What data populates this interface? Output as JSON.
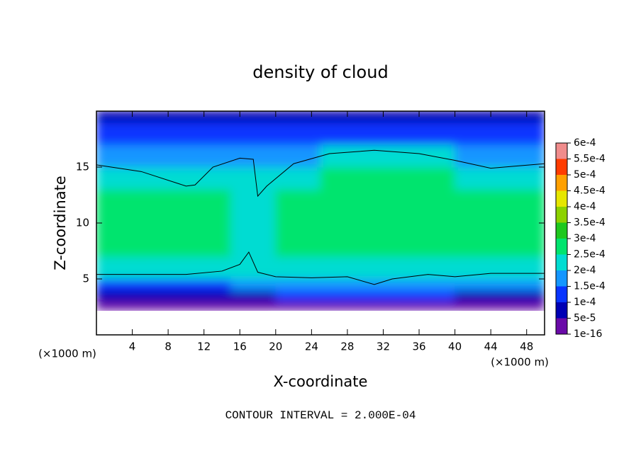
{
  "chart_data": {
    "type": "contour",
    "title": "density of cloud",
    "x_label": "X-coordinate",
    "y_label": "Z-coordinate",
    "x_unit": "(×1000 m)",
    "y_unit": "(×1000 m)",
    "footnote": "CONTOUR INTERVAL = 2.000E-04",
    "xlim": [
      0,
      50
    ],
    "ylim": [
      0,
      20
    ],
    "xticks": [
      4,
      8,
      12,
      16,
      20,
      24,
      28,
      32,
      36,
      40,
      44,
      48
    ],
    "yticks": [
      5,
      10,
      15
    ],
    "colorbar": {
      "ticks": [
        {
          "value": 1e-16,
          "label": "1e-16"
        },
        {
          "value": 5e-05,
          "label": "5e-5"
        },
        {
          "value": 0.0001,
          "label": "1e-4"
        },
        {
          "value": 0.00015,
          "label": "1.5e-4"
        },
        {
          "value": 0.0002,
          "label": "2e-4"
        },
        {
          "value": 0.00025,
          "label": "2.5e-4"
        },
        {
          "value": 0.0003,
          "label": "3e-4"
        },
        {
          "value": 0.00035,
          "label": "3.5e-4"
        },
        {
          "value": 0.0004,
          "label": "4e-4"
        },
        {
          "value": 0.00045,
          "label": "4.5e-4"
        },
        {
          "value": 0.0005,
          "label": "5e-4"
        },
        {
          "value": 0.00055,
          "label": "5.5e-4"
        },
        {
          "value": 0.0006,
          "label": "6e-4"
        }
      ],
      "colors": [
        "#6a0aa8",
        "#0000b4",
        "#0834ff",
        "#1496ff",
        "#00dcd2",
        "#00e46e",
        "#1ec81e",
        "#8cd200",
        "#e6e600",
        "#ffa000",
        "#ff3c00",
        "#f08c8c"
      ]
    },
    "field": {
      "x_edges": [
        0,
        5,
        10,
        15,
        20,
        25,
        30,
        35,
        40,
        45,
        50
      ],
      "z_edges": [
        2.2,
        3,
        4,
        5,
        7,
        9,
        11,
        13,
        15,
        17,
        19,
        20
      ],
      "values": [
        [
          3e-05,
          3e-05,
          3e-05,
          3e-05,
          3e-05,
          3e-05,
          4e-05,
          3e-05,
          3e-05,
          3e-05
        ],
        [
          8e-05,
          8e-05,
          8e-05,
          9e-05,
          0.0001,
          0.0001,
          0.00011,
          0.0001,
          9e-05,
          8e-05
        ],
        [
          0.00014,
          0.00014,
          0.00014,
          0.00016,
          0.00017,
          0.00017,
          0.00018,
          0.00017,
          0.00016,
          0.00015
        ],
        [
          0.00021,
          0.00021,
          0.00022,
          0.00023,
          0.00023,
          0.00023,
          0.00024,
          0.00024,
          0.00023,
          0.00022
        ],
        [
          0.00025,
          0.00025,
          0.00025,
          0.00022,
          0.00025,
          0.00027,
          0.00028,
          0.00028,
          0.00027,
          0.00026
        ],
        [
          0.00027,
          0.00027,
          0.00026,
          0.00022,
          0.00026,
          0.00028,
          0.00029,
          0.00029,
          0.00028,
          0.00027
        ],
        [
          0.00026,
          0.00026,
          0.00025,
          0.00022,
          0.00026,
          0.00027,
          0.00028,
          0.00028,
          0.00027,
          0.00026
        ],
        [
          0.00022,
          0.00021,
          0.0002,
          0.00021,
          0.00023,
          0.00025,
          0.00026,
          0.00025,
          0.00024,
          0.00023
        ],
        [
          0.00018,
          0.00017,
          0.00016,
          0.00017,
          0.00019,
          0.0002,
          0.00021,
          0.0002,
          0.00019,
          0.00018
        ],
        [
          0.00011,
          0.0001,
          0.0001,
          0.00011,
          0.00012,
          0.00013,
          0.00013,
          0.00013,
          0.00012,
          0.00011
        ],
        [
          6e-05,
          6e-05,
          6e-05,
          7e-05,
          7e-05,
          8e-05,
          8e-05,
          8e-05,
          7e-05,
          6e-05
        ]
      ]
    },
    "contour_lines": [
      {
        "x": [
          0,
          5,
          10,
          11,
          13,
          16,
          17.5,
          18,
          19,
          22,
          26,
          31,
          36,
          40,
          44,
          47,
          50
        ],
        "y": [
          15.2,
          14.6,
          13.3,
          13.4,
          15.0,
          15.8,
          15.7,
          12.4,
          13.3,
          15.3,
          16.2,
          16.5,
          16.2,
          15.6,
          14.9,
          15.1,
          15.3
        ]
      },
      {
        "x": [
          0,
          10,
          14,
          16,
          17,
          18,
          20,
          24,
          28,
          31,
          33,
          37,
          40,
          44,
          50
        ],
        "y": [
          5.4,
          5.4,
          5.7,
          6.3,
          7.4,
          5.6,
          5.2,
          5.1,
          5.2,
          4.5,
          5.0,
          5.4,
          5.2,
          5.5,
          5.5
        ]
      }
    ]
  }
}
